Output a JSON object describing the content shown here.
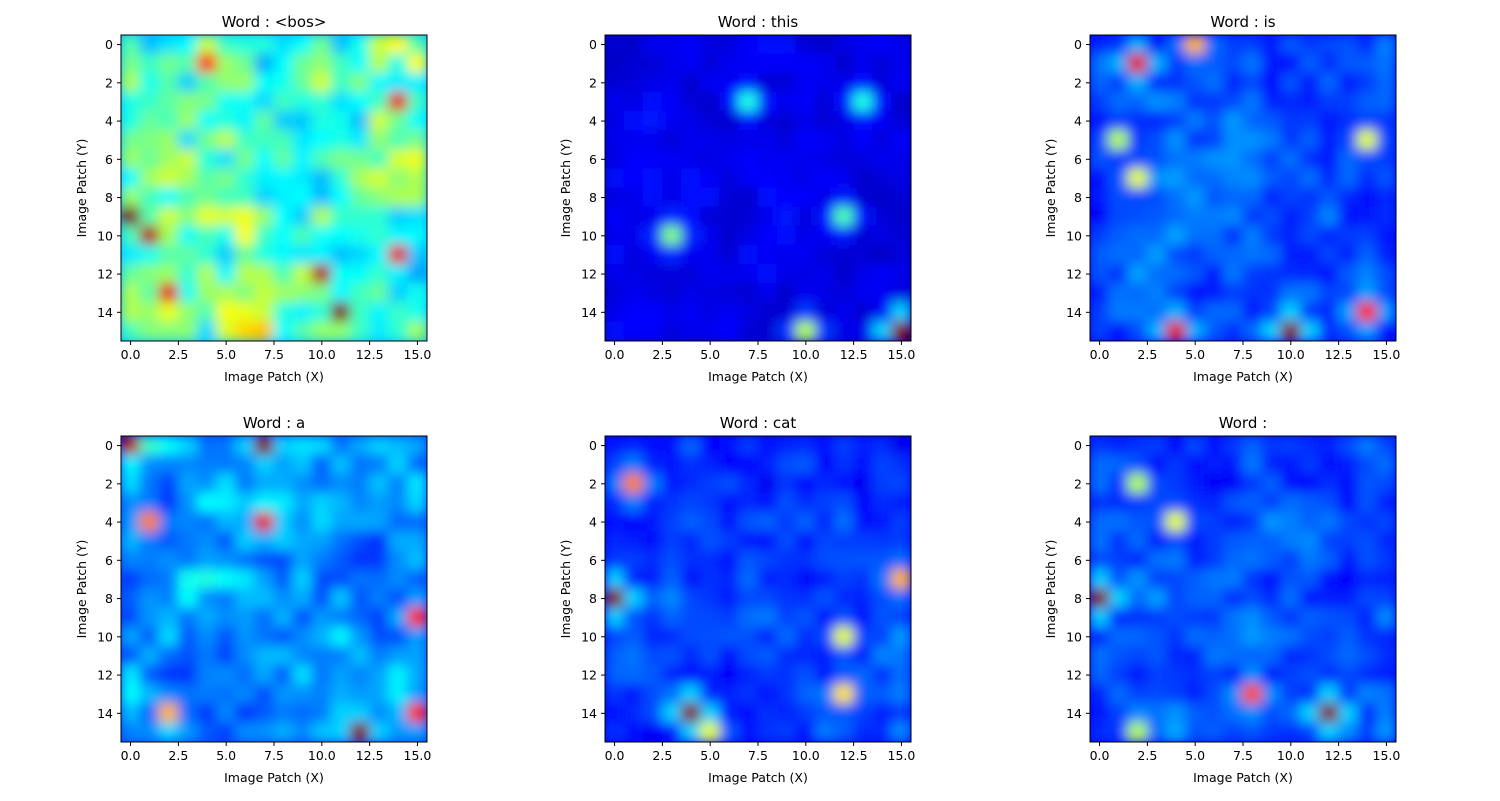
{
  "chart_data": [
    {
      "type": "heatmap",
      "title": "Word : <bos>",
      "xlabel": "Image Patch (X)",
      "ylabel": "Image Patch (Y)",
      "x_ticks": [
        "0.0",
        "2.5",
        "5.0",
        "7.5",
        "10.0",
        "12.5",
        "15.0"
      ],
      "y_ticks": [
        "0",
        "2",
        "4",
        "6",
        "8",
        "10",
        "12",
        "14"
      ],
      "xlim": [
        -0.5,
        15.5
      ],
      "ylim": [
        15.5,
        -0.5
      ],
      "colormap": "jet",
      "grid_shape": [
        16,
        16
      ],
      "seed": 11,
      "hotspots": [
        [
          14,
          11,
          1.0
        ],
        [
          12,
          10,
          0.95
        ],
        [
          10,
          1,
          0.95
        ],
        [
          9,
          0,
          1.0
        ],
        [
          3,
          14,
          0.9
        ],
        [
          1,
          4,
          0.85
        ],
        [
          11,
          14,
          0.9
        ],
        [
          13,
          2,
          0.9
        ]
      ],
      "base_intensity": 0.5
    },
    {
      "type": "heatmap",
      "title": "Word : this",
      "xlabel": "Image Patch (X)",
      "ylabel": "Image Patch (Y)",
      "x_ticks": [
        "0.0",
        "2.5",
        "5.0",
        "7.5",
        "10.0",
        "12.5",
        "15.0"
      ],
      "y_ticks": [
        "0",
        "2",
        "4",
        "6",
        "8",
        "10",
        "12",
        "14"
      ],
      "xlim": [
        -0.5,
        15.5
      ],
      "ylim": [
        15.5,
        -0.5
      ],
      "colormap": "jet",
      "grid_shape": [
        16,
        16
      ],
      "seed": 23,
      "hotspots": [
        [
          15,
          15,
          1.0
        ],
        [
          15,
          10,
          0.55
        ],
        [
          10,
          3,
          0.5
        ],
        [
          9,
          12,
          0.45
        ],
        [
          3,
          7,
          0.4
        ],
        [
          3,
          13,
          0.4
        ]
      ],
      "base_intensity": 0.12
    },
    {
      "type": "heatmap",
      "title": "Word :  is",
      "xlabel": "Image Patch (X)",
      "ylabel": "Image Patch (Y)",
      "x_ticks": [
        "0.0",
        "2.5",
        "5.0",
        "7.5",
        "10.0",
        "12.5",
        "15.0"
      ],
      "y_ticks": [
        "0",
        "2",
        "4",
        "6",
        "8",
        "10",
        "12",
        "14"
      ],
      "xlim": [
        -0.5,
        15.5
      ],
      "ylim": [
        15.5,
        -0.5
      ],
      "colormap": "jet",
      "grid_shape": [
        16,
        16
      ],
      "seed": 37,
      "hotspots": [
        [
          15,
          10,
          1.0
        ],
        [
          15,
          4,
          0.9
        ],
        [
          1,
          2,
          0.9
        ],
        [
          14,
          14,
          0.85
        ],
        [
          7,
          2,
          0.6
        ],
        [
          5,
          1,
          0.55
        ],
        [
          5,
          14,
          0.6
        ],
        [
          0,
          5,
          0.7
        ]
      ],
      "base_intensity": 0.22
    },
    {
      "type": "heatmap",
      "title": "Word :  a",
      "xlabel": "Image Patch (X)",
      "ylabel": "Image Patch (Y)",
      "x_ticks": [
        "0.0",
        "2.5",
        "5.0",
        "7.5",
        "10.0",
        "12.5",
        "15.0"
      ],
      "y_ticks": [
        "0",
        "2",
        "4",
        "6",
        "8",
        "10",
        "12",
        "14"
      ],
      "xlim": [
        -0.5,
        15.5
      ],
      "ylim": [
        15.5,
        -0.5
      ],
      "colormap": "jet",
      "grid_shape": [
        16,
        16
      ],
      "seed": 41,
      "hotspots": [
        [
          0,
          0,
          0.95
        ],
        [
          0,
          7,
          1.0
        ],
        [
          4,
          7,
          0.9
        ],
        [
          15,
          12,
          1.0
        ],
        [
          14,
          15,
          0.85
        ],
        [
          9,
          15,
          0.85
        ],
        [
          14,
          2,
          0.7
        ],
        [
          4,
          1,
          0.75
        ]
      ],
      "base_intensity": 0.3
    },
    {
      "type": "heatmap",
      "title": "Word :  cat",
      "xlabel": "Image Patch (X)",
      "ylabel": "Image Patch (Y)",
      "x_ticks": [
        "0.0",
        "2.5",
        "5.0",
        "7.5",
        "10.0",
        "12.5",
        "15.0"
      ],
      "y_ticks": [
        "0",
        "2",
        "4",
        "6",
        "8",
        "10",
        "12",
        "14"
      ],
      "xlim": [
        -0.5,
        15.5
      ],
      "ylim": [
        15.5,
        -0.5
      ],
      "colormap": "jet",
      "grid_shape": [
        16,
        16
      ],
      "seed": 53,
      "hotspots": [
        [
          8,
          0,
          1.0
        ],
        [
          14,
          4,
          1.0
        ],
        [
          2,
          1,
          0.75
        ],
        [
          7,
          15,
          0.7
        ],
        [
          13,
          12,
          0.65
        ],
        [
          10,
          12,
          0.6
        ],
        [
          15,
          5,
          0.6
        ]
      ],
      "base_intensity": 0.2
    },
    {
      "type": "heatmap",
      "title": "Word : ",
      "xlabel": "Image Patch (X)",
      "ylabel": "Image Patch (Y)",
      "x_ticks": [
        "0.0",
        "2.5",
        "5.0",
        "7.5",
        "10.0",
        "12.5",
        "15.0"
      ],
      "y_ticks": [
        "0",
        "2",
        "4",
        "6",
        "8",
        "10",
        "12",
        "14"
      ],
      "xlim": [
        -0.5,
        15.5
      ],
      "ylim": [
        15.5,
        -0.5
      ],
      "colormap": "jet",
      "grid_shape": [
        16,
        16
      ],
      "seed": 67,
      "hotspots": [
        [
          8,
          0,
          1.0
        ],
        [
          14,
          12,
          1.0
        ],
        [
          13,
          8,
          0.8
        ],
        [
          4,
          4,
          0.6
        ],
        [
          2,
          2,
          0.55
        ],
        [
          15,
          2,
          0.55
        ]
      ],
      "base_intensity": 0.22
    }
  ]
}
